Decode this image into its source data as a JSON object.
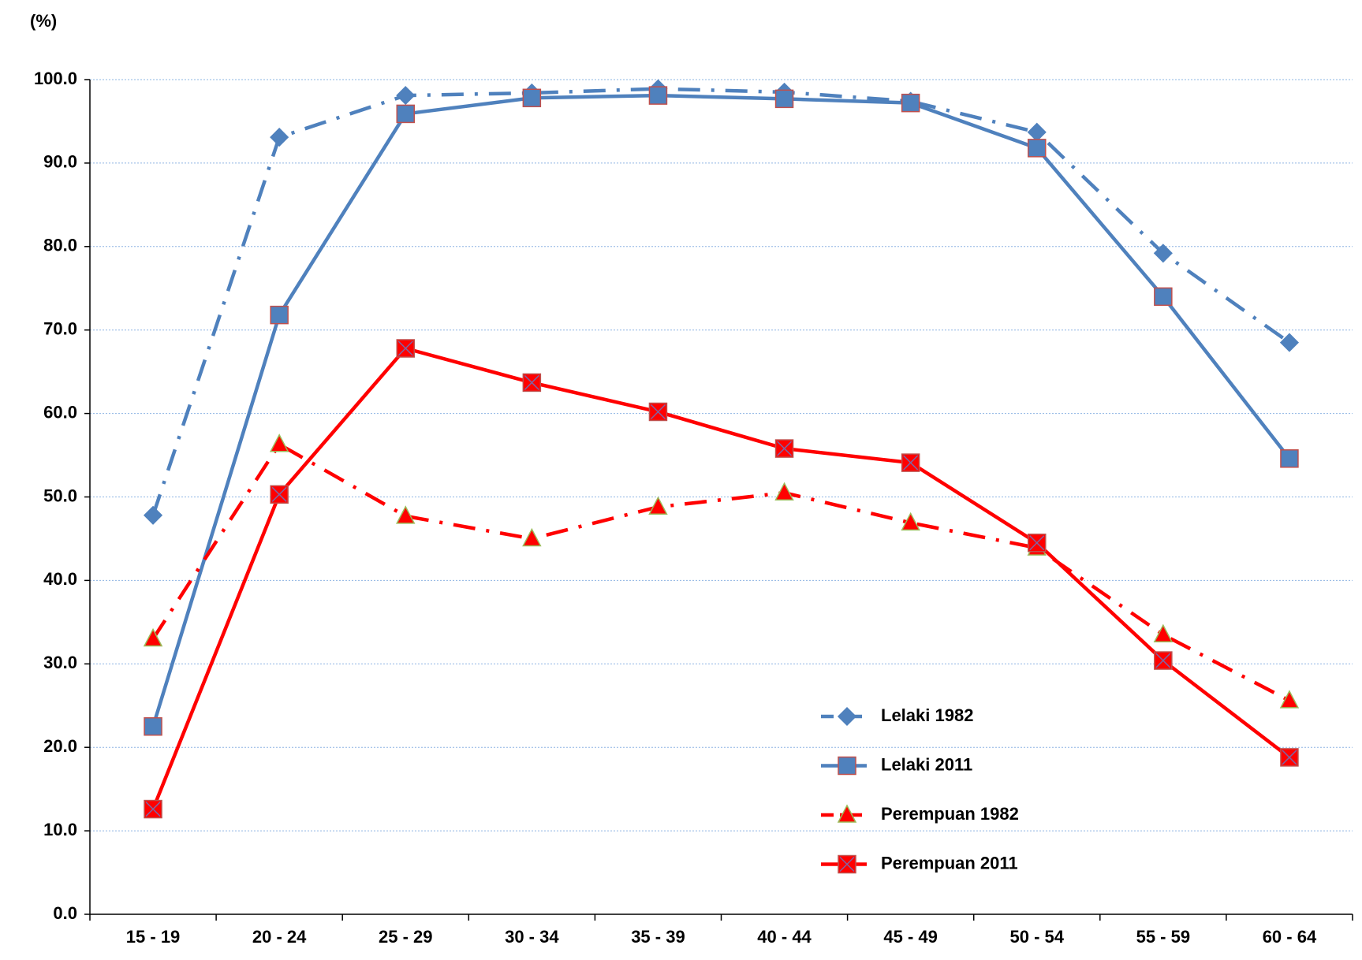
{
  "chart_data": {
    "type": "line",
    "y_label": "(%)",
    "categories": [
      "15 - 19",
      "20 - 24",
      "25 - 29",
      "30 - 34",
      "35 - 39",
      "40 - 44",
      "45 - 49",
      "50 - 54",
      "55 - 59",
      "60 - 64"
    ],
    "series": [
      {
        "name": "Lelaki 1982",
        "color": "#4f81bd",
        "marker": "diamond",
        "marker_stroke": "#4f81bd",
        "dash": "dashdot",
        "values": [
          47.8,
          93.1,
          98.1,
          98.4,
          98.9,
          98.5,
          97.4,
          93.7,
          79.2,
          68.5
        ]
      },
      {
        "name": "Lelaki 2011",
        "color": "#4f81bd",
        "marker": "square",
        "marker_stroke": "#c0504d",
        "dash": "solid",
        "values": [
          22.5,
          71.8,
          95.9,
          97.8,
          98.1,
          97.7,
          97.2,
          91.8,
          74.0,
          54.6
        ]
      },
      {
        "name": "Perempuan 1982",
        "color": "#ff0000",
        "marker": "triangle",
        "marker_stroke": "#9bbb59",
        "dash": "dashdot",
        "values": [
          33.0,
          56.3,
          47.7,
          45.0,
          48.8,
          50.5,
          46.9,
          43.9,
          33.5,
          25.6
        ]
      },
      {
        "name": "Perempuan 2011",
        "color": "#ff0000",
        "marker": "xsquare",
        "marker_stroke": "#8064a2",
        "dash": "solid",
        "values": [
          12.6,
          50.3,
          67.8,
          63.7,
          60.2,
          55.8,
          54.1,
          44.5,
          30.4,
          18.8
        ]
      }
    ],
    "ylim": [
      0,
      100
    ],
    "yticks": [
      {
        "value": 0,
        "label": "0.0"
      },
      {
        "value": 10,
        "label": "10.0"
      },
      {
        "value": 20,
        "label": "20.0"
      },
      {
        "value": 30,
        "label": "30.0"
      },
      {
        "value": 40,
        "label": "40.0"
      },
      {
        "value": 50,
        "label": "50.0"
      },
      {
        "value": 60,
        "label": "60.0"
      },
      {
        "value": 70,
        "label": "70.0"
      },
      {
        "value": 80,
        "label": "80.0"
      },
      {
        "value": 90,
        "label": "90.0"
      },
      {
        "value": 100,
        "label": "100.0"
      }
    ],
    "grid": true,
    "legend": "lower-right"
  }
}
